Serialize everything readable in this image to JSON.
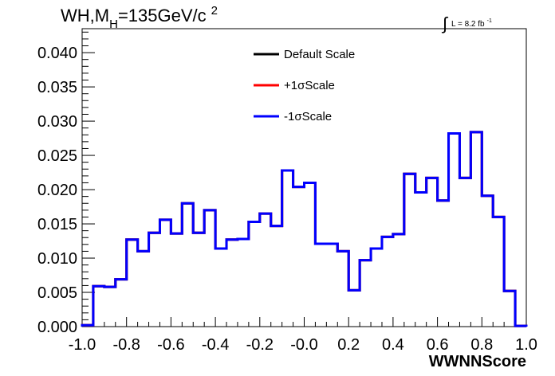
{
  "chart_data": {
    "type": "line",
    "title": {
      "prefix": "WH,M",
      "subscript": "H",
      "suffix": "=135GeV/c",
      "superscript": "2"
    },
    "luminosity": {
      "integral_symbol": "∫",
      "text": "L = 8.2 fb",
      "superscript": "-1"
    },
    "xlabel": "WWNNScore",
    "ylabel": "",
    "xlim": [
      -1.0,
      1.0
    ],
    "ylim": [
      0.0,
      0.0435
    ],
    "x_tick_labels": [
      "-1.0",
      "-0.8",
      "-0.6",
      "-0.4",
      "-0.2",
      "-0.0",
      "0.2",
      "0.4",
      "0.6",
      "0.8",
      "1.0"
    ],
    "x_tick_values": [
      -1.0,
      -0.8,
      -0.6,
      -0.4,
      -0.2,
      0.0,
      0.2,
      0.4,
      0.6,
      0.8,
      1.0
    ],
    "y_tick_labels": [
      "0.000",
      "0.005",
      "0.010",
      "0.015",
      "0.020",
      "0.025",
      "0.030",
      "0.035",
      "0.040"
    ],
    "y_tick_values": [
      0.0,
      0.005,
      0.01,
      0.015,
      0.02,
      0.025,
      0.03,
      0.035,
      0.04
    ],
    "grid": false,
    "legend_position": "top-center",
    "bin_edges": [
      -1.0,
      -0.95,
      -0.9,
      -0.85,
      -0.8,
      -0.75,
      -0.7,
      -0.65,
      -0.6,
      -0.55,
      -0.5,
      -0.45,
      -0.4,
      -0.35,
      -0.3,
      -0.25,
      -0.2,
      -0.15,
      -0.1,
      -0.05,
      0.0,
      0.05,
      0.1,
      0.15,
      0.2,
      0.25,
      0.3,
      0.35,
      0.4,
      0.45,
      0.5,
      0.55,
      0.6,
      0.65,
      0.7,
      0.75,
      0.8,
      0.85,
      0.9,
      0.95,
      1.0
    ],
    "series": [
      {
        "name": "Default Scale",
        "color": "#000000",
        "values": [
          0.0002,
          0.0059,
          0.0058,
          0.0069,
          0.0127,
          0.011,
          0.0137,
          0.0156,
          0.0136,
          0.018,
          0.0137,
          0.017,
          0.0114,
          0.0127,
          0.0128,
          0.0153,
          0.0165,
          0.0147,
          0.0228,
          0.0204,
          0.021,
          0.0121,
          0.0121,
          0.011,
          0.0053,
          0.0097,
          0.0114,
          0.0131,
          0.0135,
          0.0223,
          0.0196,
          0.0217,
          0.0184,
          0.0282,
          0.0217,
          0.0284,
          0.0191,
          0.016,
          0.0052,
          0.0001
        ]
      },
      {
        "name": "+1σScale",
        "color": "#ff0000",
        "values": [
          0.0002,
          0.0059,
          0.0058,
          0.0069,
          0.0127,
          0.011,
          0.0137,
          0.0156,
          0.0136,
          0.018,
          0.0137,
          0.017,
          0.0114,
          0.0127,
          0.0128,
          0.0153,
          0.0165,
          0.0147,
          0.0228,
          0.0204,
          0.021,
          0.0121,
          0.0121,
          0.011,
          0.0053,
          0.0097,
          0.0114,
          0.0131,
          0.0135,
          0.0223,
          0.0196,
          0.0217,
          0.0184,
          0.0282,
          0.0217,
          0.0284,
          0.0191,
          0.016,
          0.0052,
          0.0001
        ]
      },
      {
        "name": "-1σScale",
        "color": "#0000ff",
        "values": [
          0.0002,
          0.0059,
          0.0058,
          0.0069,
          0.0127,
          0.011,
          0.0137,
          0.0156,
          0.0136,
          0.018,
          0.0137,
          0.017,
          0.0114,
          0.0127,
          0.0128,
          0.0153,
          0.0165,
          0.0147,
          0.0228,
          0.0204,
          0.021,
          0.0121,
          0.0121,
          0.011,
          0.0053,
          0.0097,
          0.0114,
          0.0131,
          0.0135,
          0.0223,
          0.0196,
          0.0217,
          0.0184,
          0.0282,
          0.0217,
          0.0284,
          0.0191,
          0.016,
          0.0052,
          0.0001
        ]
      }
    ]
  }
}
